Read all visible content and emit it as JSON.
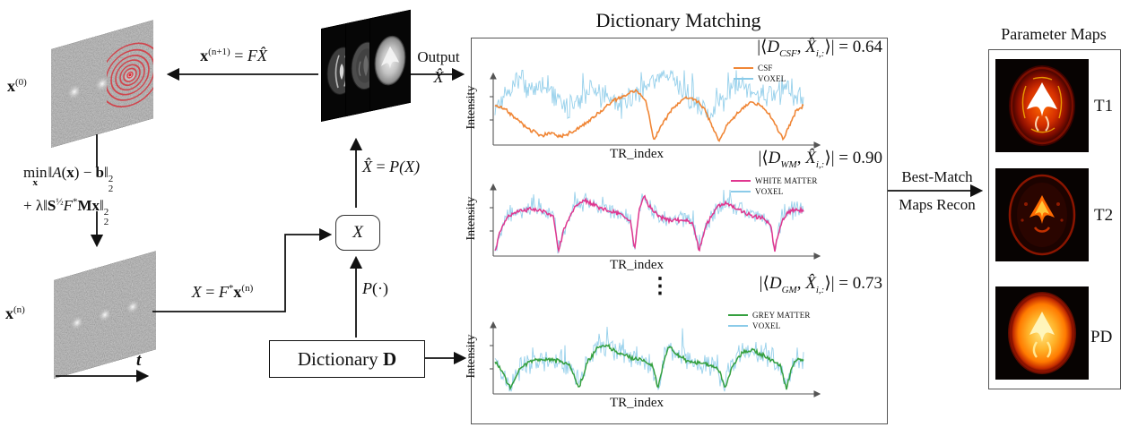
{
  "colors": {
    "csf": "#f08636",
    "voxel": "#8bcbe9",
    "white_matter": "#e0368f",
    "grey_matter": "#35a03f",
    "trajectory_red": "#d92b35",
    "map_hot": "#ff6a00"
  },
  "left": {
    "x0": {
      "base": "x",
      "sup": "(0)"
    },
    "xn": {
      "base": "x",
      "sup": "(n)"
    },
    "t_label": "t",
    "min_eq": {
      "line1": {
        "min": "min",
        "minsub": "x",
        "p1": "‖",
        "A": "A",
        "p2": "(",
        "x": "x",
        "p3": ") − ",
        "b": "b",
        "p4": "‖",
        "sup": "2",
        "sub": "2"
      },
      "line2": {
        "p1": "+ λ‖",
        "S": "S",
        "ssup": "½",
        "F": "F",
        "star": "*",
        "M": "M",
        "x": "x",
        "p2": "‖",
        "sup": "2",
        "sub": "2"
      }
    }
  },
  "equations": {
    "update": {
      "lhs": "x",
      "lhs_sup": "(n+1)",
      "eq": " = ",
      "F": "F",
      "Xhat": "X̂"
    },
    "transform": {
      "X": "X",
      "eq": " = ",
      "F": "F",
      "star": "*",
      "x": "x",
      "x_sup": "(n)"
    },
    "projection": {
      "Xhat": "X̂",
      "eq": " = ",
      "P": "P",
      "arg": "(X)"
    },
    "p_operator": {
      "P": "P",
      "arg": "(·)"
    }
  },
  "boxes": {
    "x_box": "X",
    "dictionary": {
      "text": "Dictionary ",
      "D": "D"
    }
  },
  "output": {
    "label": "Output",
    "symbol": "X̂"
  },
  "dm_panel": {
    "title": "Dictionary Matching",
    "ellipsis": "⋮",
    "plots": [
      {
        "ylabel": "Intensity",
        "xlabel": "TR_index",
        "corr": {
          "pre": "|⟨",
          "D": "D",
          "sub1": "CSF",
          "mid": ", ",
          "X": "X̂",
          "sub2": "i,:",
          "post": "⟩| = ",
          "value": "0.64"
        },
        "legend": [
          {
            "label": "CSF",
            "color": "#f08636"
          },
          {
            "label": "VOXEL",
            "color": "#8bcbe9"
          }
        ]
      },
      {
        "ylabel": "Intensity",
        "xlabel": "TR_index",
        "corr": {
          "pre": "|⟨",
          "D": "D",
          "sub1": "WM",
          "mid": ", ",
          "X": "X̂",
          "sub2": "i,:",
          "post": "⟩| = ",
          "value": "0.90"
        },
        "legend": [
          {
            "label": "WHITE MATTER",
            "color": "#e0368f"
          },
          {
            "label": "VOXEL",
            "color": "#8bcbe9"
          }
        ]
      },
      {
        "ylabel": "Intensity",
        "xlabel": "TR_index",
        "corr": {
          "pre": "|⟨",
          "D": "D",
          "sub1": "GM",
          "mid": ", ",
          "X": "X̂",
          "sub2": "i,:",
          "post": "⟩| = ",
          "value": "0.73"
        },
        "legend": [
          {
            "label": "GREY MATTER",
            "color": "#35a03f"
          },
          {
            "label": "VOXEL",
            "color": "#8bcbe9"
          }
        ]
      }
    ]
  },
  "right": {
    "title": "Parameter Maps",
    "arrow_label_top": "Best-Match",
    "arrow_label_bottom": "Maps Recon",
    "maps": [
      {
        "label": "T1"
      },
      {
        "label": "T2"
      },
      {
        "label": "PD"
      }
    ]
  },
  "chart_data": [
    {
      "type": "line",
      "xlabel": "TR_index",
      "ylabel": "Intensity",
      "annotation": "|⟨D_CSF, X̂_i,:⟩| = 0.64",
      "legend_position": "top-right",
      "series": [
        {
          "name": "VOXEL",
          "color": "#8bcbe9",
          "width": 0.9,
          "opacity": 0.9,
          "noise": 0.2,
          "seed": 7,
          "spiky": true,
          "anchors": [
            [
              0,
              0.45
            ],
            [
              0.04,
              0.65
            ],
            [
              0.08,
              0.8
            ],
            [
              0.12,
              0.7
            ],
            [
              0.16,
              0.78
            ],
            [
              0.2,
              0.6
            ],
            [
              0.24,
              0.4
            ],
            [
              0.27,
              0.55
            ],
            [
              0.31,
              0.72
            ],
            [
              0.35,
              0.6
            ],
            [
              0.4,
              0.5
            ],
            [
              0.45,
              0.6
            ],
            [
              0.5,
              0.8
            ],
            [
              0.55,
              0.9
            ],
            [
              0.58,
              0.78
            ],
            [
              0.62,
              0.6
            ],
            [
              0.66,
              0.45
            ],
            [
              0.7,
              0.38
            ],
            [
              0.74,
              0.6
            ],
            [
              0.78,
              0.8
            ],
            [
              0.82,
              0.7
            ],
            [
              0.86,
              0.6
            ],
            [
              0.9,
              0.65
            ],
            [
              0.94,
              0.72
            ],
            [
              0.98,
              0.6
            ],
            [
              1,
              0.55
            ]
          ]
        },
        {
          "name": "CSF",
          "color": "#f08636",
          "width": 1.6,
          "opacity": 1,
          "noise": 0.03,
          "seed": 3,
          "spiky": false,
          "anchors": [
            [
              0,
              0.5
            ],
            [
              0.03,
              0.46
            ],
            [
              0.07,
              0.32
            ],
            [
              0.11,
              0.18
            ],
            [
              0.15,
              0.1
            ],
            [
              0.18,
              0.14
            ],
            [
              0.21,
              0.09
            ],
            [
              0.24,
              0.13
            ],
            [
              0.28,
              0.22
            ],
            [
              0.33,
              0.38
            ],
            [
              0.38,
              0.55
            ],
            [
              0.43,
              0.66
            ],
            [
              0.46,
              0.7
            ],
            [
              0.49,
              0.55
            ],
            [
              0.515,
              0.04
            ],
            [
              0.54,
              0.25
            ],
            [
              0.58,
              0.48
            ],
            [
              0.62,
              0.62
            ],
            [
              0.65,
              0.58
            ],
            [
              0.68,
              0.45
            ],
            [
              0.705,
              0.22
            ],
            [
              0.725,
              0.03
            ],
            [
              0.75,
              0.22
            ],
            [
              0.79,
              0.42
            ],
            [
              0.83,
              0.55
            ],
            [
              0.86,
              0.5
            ],
            [
              0.89,
              0.38
            ],
            [
              0.915,
              0.2
            ],
            [
              0.935,
              0.06
            ],
            [
              0.955,
              0.25
            ],
            [
              0.975,
              0.42
            ],
            [
              1,
              0.5
            ]
          ]
        }
      ]
    },
    {
      "type": "line",
      "xlabel": "TR_index",
      "ylabel": "Intensity",
      "annotation": "|⟨D_WM, X̂_i,:⟩| = 0.90",
      "legend_position": "top-right",
      "series": [
        {
          "name": "VOXEL",
          "color": "#8bcbe9",
          "width": 0.9,
          "opacity": 0.9,
          "noise": 0.15,
          "seed": 11,
          "spiky": true,
          "anchors": [
            [
              0,
              0.04
            ],
            [
              0.015,
              0.28
            ],
            [
              0.04,
              0.5
            ],
            [
              0.08,
              0.58
            ],
            [
              0.12,
              0.6
            ],
            [
              0.16,
              0.57
            ],
            [
              0.19,
              0.5
            ],
            [
              0.205,
              0.04
            ],
            [
              0.225,
              0.35
            ],
            [
              0.26,
              0.64
            ],
            [
              0.29,
              0.72
            ],
            [
              0.33,
              0.64
            ],
            [
              0.37,
              0.57
            ],
            [
              0.41,
              0.53
            ],
            [
              0.44,
              0.44
            ],
            [
              0.452,
              0.05
            ],
            [
              0.468,
              0.6
            ],
            [
              0.482,
              0.78
            ],
            [
              0.5,
              0.64
            ],
            [
              0.53,
              0.5
            ],
            [
              0.57,
              0.45
            ],
            [
              0.61,
              0.46
            ],
            [
              0.64,
              0.42
            ],
            [
              0.662,
              0.05
            ],
            [
              0.685,
              0.4
            ],
            [
              0.72,
              0.62
            ],
            [
              0.75,
              0.68
            ],
            [
              0.79,
              0.6
            ],
            [
              0.83,
              0.52
            ],
            [
              0.87,
              0.48
            ],
            [
              0.893,
              0.4
            ],
            [
              0.906,
              0.05
            ],
            [
              0.925,
              0.4
            ],
            [
              0.95,
              0.56
            ],
            [
              0.975,
              0.6
            ],
            [
              1,
              0.57
            ]
          ]
        },
        {
          "name": "WHITE MATTER",
          "color": "#e0368f",
          "width": 1.5,
          "opacity": 1,
          "noise": 0.035,
          "seed": 5,
          "spiky": false,
          "anchors": [
            [
              0,
              0.04
            ],
            [
              0.015,
              0.28
            ],
            [
              0.04,
              0.5
            ],
            [
              0.08,
              0.58
            ],
            [
              0.12,
              0.6
            ],
            [
              0.16,
              0.57
            ],
            [
              0.19,
              0.5
            ],
            [
              0.205,
              0.04
            ],
            [
              0.225,
              0.35
            ],
            [
              0.26,
              0.64
            ],
            [
              0.29,
              0.72
            ],
            [
              0.33,
              0.64
            ],
            [
              0.37,
              0.57
            ],
            [
              0.41,
              0.53
            ],
            [
              0.44,
              0.44
            ],
            [
              0.452,
              0.05
            ],
            [
              0.468,
              0.6
            ],
            [
              0.482,
              0.78
            ],
            [
              0.5,
              0.64
            ],
            [
              0.53,
              0.5
            ],
            [
              0.57,
              0.45
            ],
            [
              0.61,
              0.46
            ],
            [
              0.64,
              0.42
            ],
            [
              0.662,
              0.05
            ],
            [
              0.685,
              0.4
            ],
            [
              0.72,
              0.62
            ],
            [
              0.75,
              0.68
            ],
            [
              0.79,
              0.6
            ],
            [
              0.83,
              0.52
            ],
            [
              0.87,
              0.48
            ],
            [
              0.893,
              0.4
            ],
            [
              0.906,
              0.05
            ],
            [
              0.925,
              0.4
            ],
            [
              0.95,
              0.56
            ],
            [
              0.975,
              0.6
            ],
            [
              1,
              0.57
            ]
          ]
        }
      ]
    },
    {
      "type": "line",
      "xlabel": "TR_index",
      "ylabel": "Intensity",
      "annotation": "|⟨D_GM, X̂_i,:⟩| = 0.73",
      "legend_position": "top-right",
      "series": [
        {
          "name": "VOXEL",
          "color": "#8bcbe9",
          "width": 0.9,
          "opacity": 0.9,
          "noise": 0.19,
          "seed": 13,
          "spiky": true,
          "anchors": [
            [
              0,
              0.42
            ],
            [
              0.02,
              0.3
            ],
            [
              0.05,
              0.05
            ],
            [
              0.08,
              0.3
            ],
            [
              0.12,
              0.42
            ],
            [
              0.16,
              0.44
            ],
            [
              0.2,
              0.42
            ],
            [
              0.24,
              0.38
            ],
            [
              0.272,
              0.05
            ],
            [
              0.3,
              0.4
            ],
            [
              0.33,
              0.58
            ],
            [
              0.36,
              0.62
            ],
            [
              0.4,
              0.52
            ],
            [
              0.44,
              0.46
            ],
            [
              0.48,
              0.42
            ],
            [
              0.51,
              0.36
            ],
            [
              0.528,
              0.05
            ],
            [
              0.55,
              0.45
            ],
            [
              0.565,
              0.6
            ],
            [
              0.59,
              0.5
            ],
            [
              0.63,
              0.4
            ],
            [
              0.67,
              0.38
            ],
            [
              0.7,
              0.36
            ],
            [
              0.725,
              0.3
            ],
            [
              0.745,
              0.05
            ],
            [
              0.77,
              0.35
            ],
            [
              0.8,
              0.52
            ],
            [
              0.83,
              0.56
            ],
            [
              0.87,
              0.48
            ],
            [
              0.9,
              0.42
            ],
            [
              0.925,
              0.35
            ],
            [
              0.945,
              0.05
            ],
            [
              0.965,
              0.35
            ],
            [
              0.985,
              0.45
            ],
            [
              1,
              0.42
            ]
          ]
        },
        {
          "name": "GREY MATTER",
          "color": "#35a03f",
          "width": 1.5,
          "opacity": 1,
          "noise": 0.035,
          "seed": 9,
          "spiky": false,
          "anchors": [
            [
              0,
              0.42
            ],
            [
              0.02,
              0.3
            ],
            [
              0.05,
              0.05
            ],
            [
              0.08,
              0.3
            ],
            [
              0.12,
              0.42
            ],
            [
              0.16,
              0.44
            ],
            [
              0.2,
              0.42
            ],
            [
              0.24,
              0.38
            ],
            [
              0.272,
              0.05
            ],
            [
              0.3,
              0.4
            ],
            [
              0.33,
              0.58
            ],
            [
              0.36,
              0.62
            ],
            [
              0.4,
              0.52
            ],
            [
              0.44,
              0.46
            ],
            [
              0.48,
              0.42
            ],
            [
              0.51,
              0.36
            ],
            [
              0.528,
              0.05
            ],
            [
              0.55,
              0.45
            ],
            [
              0.565,
              0.6
            ],
            [
              0.59,
              0.5
            ],
            [
              0.63,
              0.4
            ],
            [
              0.67,
              0.38
            ],
            [
              0.7,
              0.36
            ],
            [
              0.725,
              0.3
            ],
            [
              0.745,
              0.05
            ],
            [
              0.77,
              0.35
            ],
            [
              0.8,
              0.52
            ],
            [
              0.83,
              0.56
            ],
            [
              0.87,
              0.48
            ],
            [
              0.9,
              0.42
            ],
            [
              0.925,
              0.35
            ],
            [
              0.945,
              0.05
            ],
            [
              0.965,
              0.35
            ],
            [
              0.985,
              0.45
            ],
            [
              1,
              0.42
            ]
          ]
        }
      ]
    }
  ]
}
